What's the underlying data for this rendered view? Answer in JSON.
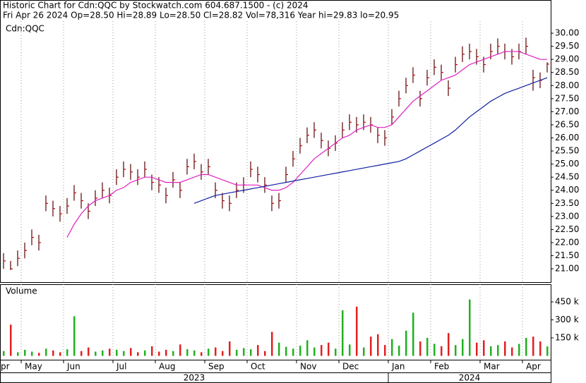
{
  "chart_data": {
    "type": "ohlc",
    "title": "Historic Chart for Cdn:QQC by Stockwatch.com 604.687.1500 - (c) 2024",
    "subtitle": "Fri Apr 26 2024  Op=28.50  Hi=28.89  Lo=28.50  Cl=28.82  Vol=78,316  Year hi=29.83  lo=20.95",
    "symbol_label": "Cdn:QQC",
    "bar_color": "#5a0000",
    "close_color": "#c00000",
    "high": [
      21.6,
      21.3,
      21.7,
      22.0,
      22.5,
      22.3,
      23.8,
      23.6,
      23.4,
      23.7,
      24.2,
      23.9,
      23.5,
      24.0,
      24.3,
      24.1,
      24.8,
      25.1,
      25.0,
      24.8,
      25.1,
      24.6,
      24.5,
      24.1,
      24.7,
      24.3,
      25.2,
      25.4,
      25.0,
      25.2,
      24.3,
      23.9,
      23.8,
      24.3,
      24.5,
      25.1,
      24.9,
      24.5,
      23.8,
      23.9,
      24.9,
      25.5,
      26.0,
      26.4,
      26.6,
      26.2,
      25.9,
      26.1,
      26.6,
      26.9,
      26.8,
      26.9,
      26.8,
      26.4,
      26.3,
      27.1,
      27.8,
      28.3,
      28.7,
      27.8,
      28.6,
      29.0,
      28.8,
      28.2,
      29.1,
      29.5,
      29.6,
      29.4,
      29.1,
      29.6,
      29.8,
      29.6,
      29.4,
      29.6,
      29.83,
      28.6,
      28.5,
      28.89
    ],
    "low": [
      21.0,
      20.95,
      21.1,
      21.4,
      21.9,
      21.7,
      23.2,
      23.0,
      22.8,
      23.1,
      23.6,
      23.3,
      22.9,
      23.4,
      23.7,
      23.5,
      24.2,
      24.5,
      24.4,
      24.2,
      24.5,
      24.0,
      23.9,
      23.5,
      24.1,
      23.7,
      24.6,
      24.8,
      24.4,
      24.6,
      23.7,
      23.3,
      23.2,
      23.7,
      23.9,
      24.5,
      24.3,
      23.9,
      23.2,
      23.3,
      24.3,
      24.9,
      25.4,
      25.8,
      26.0,
      25.6,
      25.3,
      25.5,
      26.0,
      26.3,
      26.2,
      26.3,
      26.2,
      25.8,
      25.7,
      26.5,
      27.2,
      27.7,
      28.1,
      27.2,
      28.0,
      28.4,
      28.2,
      27.6,
      28.5,
      28.9,
      29.0,
      28.8,
      28.5,
      29.0,
      29.2,
      29.0,
      28.8,
      29.0,
      29.2,
      27.8,
      27.9,
      28.5
    ],
    "close": [
      21.3,
      21.0,
      21.4,
      21.7,
      22.2,
      22.0,
      23.5,
      23.3,
      23.1,
      23.4,
      23.9,
      23.6,
      23.2,
      23.7,
      24.0,
      23.8,
      24.5,
      24.8,
      24.7,
      24.5,
      24.8,
      24.3,
      24.2,
      23.8,
      24.4,
      24.0,
      24.9,
      25.1,
      24.7,
      24.9,
      24.0,
      23.6,
      23.5,
      24.0,
      24.2,
      24.8,
      24.6,
      24.2,
      23.5,
      23.6,
      24.6,
      25.2,
      25.7,
      26.1,
      26.3,
      25.9,
      25.6,
      25.8,
      26.3,
      26.6,
      26.5,
      26.6,
      26.5,
      26.1,
      26.0,
      26.8,
      27.5,
      28.0,
      28.4,
      27.5,
      28.3,
      28.7,
      28.5,
      27.9,
      28.8,
      29.2,
      29.3,
      29.1,
      28.8,
      29.3,
      29.5,
      29.3,
      29.1,
      29.3,
      29.5,
      28.3,
      28.2,
      28.82
    ],
    "lines": [
      {
        "color": "#e020c0",
        "values": [
          null,
          null,
          null,
          null,
          null,
          null,
          null,
          null,
          null,
          22.2,
          22.7,
          23.1,
          23.4,
          23.6,
          23.7,
          23.8,
          24.0,
          24.1,
          24.3,
          24.4,
          24.5,
          24.5,
          24.4,
          24.3,
          24.3,
          24.3,
          24.4,
          24.5,
          24.6,
          24.6,
          24.5,
          24.4,
          24.3,
          24.2,
          24.2,
          24.2,
          24.2,
          24.1,
          24.0,
          24.0,
          24.1,
          24.3,
          24.6,
          24.9,
          25.2,
          25.4,
          25.6,
          25.8,
          26.0,
          26.1,
          26.3,
          26.4,
          26.5,
          26.4,
          26.4,
          26.5,
          26.8,
          27.1,
          27.4,
          27.6,
          27.8,
          28.0,
          28.2,
          28.3,
          28.4,
          28.6,
          28.8,
          28.9,
          29.0,
          29.1,
          29.2,
          29.3,
          29.3,
          29.3,
          29.2,
          29.1,
          29.0,
          29.0
        ]
      },
      {
        "color": "#1020a0",
        "values": [
          null,
          null,
          null,
          null,
          null,
          null,
          null,
          null,
          null,
          null,
          null,
          null,
          null,
          null,
          null,
          null,
          null,
          null,
          null,
          null,
          null,
          null,
          null,
          null,
          null,
          null,
          null,
          23.5,
          23.6,
          23.7,
          23.8,
          23.85,
          23.9,
          23.95,
          24.0,
          24.05,
          24.1,
          24.15,
          24.2,
          24.25,
          24.3,
          24.35,
          24.4,
          24.45,
          24.5,
          24.55,
          24.6,
          24.65,
          24.7,
          24.75,
          24.8,
          24.85,
          24.9,
          24.95,
          25.0,
          25.05,
          25.1,
          25.2,
          25.35,
          25.5,
          25.65,
          25.8,
          25.95,
          26.1,
          26.3,
          26.55,
          26.8,
          27.0,
          27.2,
          27.4,
          27.55,
          27.7,
          27.8,
          27.9,
          28.0,
          28.1,
          28.2,
          28.3
        ]
      }
    ],
    "ylim": [
      20.49,
      30.46
    ],
    "yticks": [
      {
        "value": 21,
        "label": "21.00"
      },
      {
        "value": 21.5,
        "label": "21.50"
      },
      {
        "value": 22,
        "label": "22.00"
      },
      {
        "value": 22.5,
        "label": "22.50"
      },
      {
        "value": 23,
        "label": "23.00"
      },
      {
        "value": 23.5,
        "label": "23.50"
      },
      {
        "value": 24,
        "label": "24.00"
      },
      {
        "value": 24.5,
        "label": "24.50"
      },
      {
        "value": 25,
        "label": "25.00"
      },
      {
        "value": 25.5,
        "label": "25.50"
      },
      {
        "value": 26,
        "label": "26.00"
      },
      {
        "value": 26.5,
        "label": "26.50"
      },
      {
        "value": 27,
        "label": "27.00"
      },
      {
        "value": 27.5,
        "label": "27.50"
      },
      {
        "value": 28,
        "label": "28.00"
      },
      {
        "value": 28.5,
        "label": "28.50"
      },
      {
        "value": 29,
        "label": "29.00"
      },
      {
        "value": 29.5,
        "label": "29.50"
      },
      {
        "value": 30,
        "label": "30.00"
      }
    ],
    "xticks": [
      {
        "value": 0,
        "label": "pr"
      },
      {
        "value": 3,
        "label": "May"
      },
      {
        "value": 9,
        "label": "Jun"
      },
      {
        "value": 16,
        "label": "Jul"
      },
      {
        "value": 22,
        "label": "Aug"
      },
      {
        "value": 29,
        "label": "Sep"
      },
      {
        "value": 35,
        "label": "Oct"
      },
      {
        "value": 42,
        "label": "Nov"
      },
      {
        "value": 48,
        "label": "Dec"
      },
      {
        "value": 55,
        "label": "Jan"
      },
      {
        "value": 61,
        "label": "Feb"
      },
      {
        "value": 68,
        "label": "Mar"
      },
      {
        "value": 74,
        "label": "Apr"
      }
    ],
    "years": [
      {
        "value": 0,
        "label": "2023"
      },
      {
        "value": 55,
        "label": "2024"
      }
    ],
    "grid": true,
    "volume": {
      "label": "Volume",
      "up_color": "#22b022",
      "down_color": "#e02020",
      "values": [
        40000,
        260000,
        30000,
        50000,
        35000,
        25000,
        60000,
        45000,
        30000,
        55000,
        330000,
        40000,
        70000,
        35000,
        45000,
        60000,
        50000,
        40000,
        65000,
        30000,
        45000,
        80000,
        35000,
        50000,
        40000,
        95000,
        55000,
        45000,
        30000,
        60000,
        70000,
        40000,
        120000,
        50000,
        65000,
        55000,
        90000,
        40000,
        200000,
        110000,
        75000,
        60000,
        85000,
        130000,
        70000,
        90000,
        110000,
        60000,
        380000,
        95000,
        410000,
        70000,
        160000,
        180000,
        90000,
        140000,
        85000,
        210000,
        360000,
        120000,
        150000,
        100000,
        80000,
        190000,
        90000,
        140000,
        470000,
        110000,
        130000,
        80000,
        90000,
        120000,
        70000,
        100000,
        150000,
        160000,
        120000,
        78316
      ],
      "ylim": [
        0,
        597000
      ],
      "yticks": [
        {
          "value": 150000,
          "label": "150 k"
        },
        {
          "value": 300000,
          "label": "300 k"
        },
        {
          "value": 450000,
          "label": "450 k"
        }
      ]
    }
  }
}
